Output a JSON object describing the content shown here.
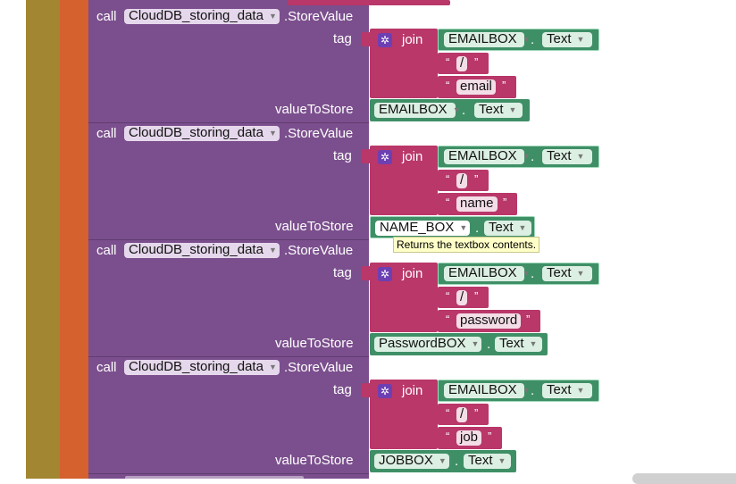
{
  "blocks": [
    {
      "call_label": "call",
      "component": "CloudDB_storing_data",
      "method": ".StoreValue",
      "tag_label": "tag",
      "join_label": "join",
      "tag_component": "EMAILBOX",
      "tag_property": "Text",
      "separator": "/",
      "suffix": "email",
      "value_label": "valueToStore",
      "value_component": "EMAILBOX",
      "value_property": "Text"
    },
    {
      "call_label": "call",
      "component": "CloudDB_storing_data",
      "method": ".StoreValue",
      "tag_label": "tag",
      "join_label": "join",
      "tag_component": "EMAILBOX",
      "tag_property": "Text",
      "separator": "/",
      "suffix": "name",
      "value_label": "valueToStore",
      "value_component": "NAME_BOX",
      "value_property": "Text"
    },
    {
      "call_label": "call",
      "component": "CloudDB_storing_data",
      "method": ".StoreValue",
      "tag_label": "tag",
      "join_label": "join",
      "tag_component": "EMAILBOX",
      "tag_property": "Text",
      "separator": "/",
      "suffix": "password",
      "value_label": "valueToStore",
      "value_component": "PasswordBOX",
      "value_property": "Text"
    },
    {
      "call_label": "call",
      "component": "CloudDB_storing_data",
      "method": ".StoreValue",
      "tag_label": "tag",
      "join_label": "join",
      "tag_component": "EMAILBOX",
      "tag_property": "Text",
      "separator": "/",
      "suffix": "job",
      "value_label": "valueToStore",
      "value_component": "JOBBOX",
      "value_property": "Text"
    }
  ],
  "dot": ".",
  "open_quote": "“",
  "close_quote": "”",
  "tooltip": "Returns the textbox contents.",
  "colors": {
    "procedure": "#7b4f8d",
    "text": "#b93769",
    "component": "#3f8f66",
    "outer": "#a28631",
    "event": "#d4612e"
  }
}
